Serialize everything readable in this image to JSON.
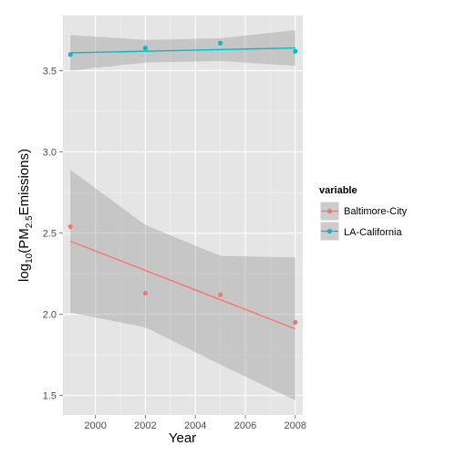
{
  "chart_data": {
    "type": "scatter",
    "title": "",
    "xlabel": "Year",
    "ylabel_parts": [
      "log",
      "10",
      "(PM",
      "2.5",
      "Emissions)"
    ],
    "xlim": [
      1998.7,
      2008.3
    ],
    "ylim": [
      1.38,
      3.84
    ],
    "x_ticks": [
      2000,
      2002,
      2004,
      2006,
      2008
    ],
    "x_tick_labels": [
      "2000",
      "2002",
      "2004",
      "2006",
      "2008"
    ],
    "y_ticks": [
      1.5,
      2.0,
      2.5,
      3.0,
      3.5
    ],
    "y_tick_labels": [
      "1.5",
      "2.0",
      "2.5",
      "3.0",
      "3.5"
    ],
    "grid": true,
    "legend": {
      "title": "variable",
      "position": "right"
    },
    "series": [
      {
        "name": "Baltimore-City",
        "color": "#F8766D",
        "x": [
          1999,
          2002,
          2005,
          2008
        ],
        "y": [
          2.54,
          2.13,
          2.12,
          1.95
        ],
        "fit": {
          "intercept_at_1999": 2.45,
          "value_at_2008": 1.91
        },
        "ci_lower": [
          2.01,
          1.92,
          1.69,
          1.47
        ],
        "ci_upper": [
          2.89,
          2.55,
          2.36,
          2.35
        ],
        "ci_x": [
          1999,
          2002,
          2005,
          2008
        ]
      },
      {
        "name": "LA-California",
        "color": "#00BFC4",
        "x": [
          1999,
          2002,
          2005,
          2008
        ],
        "y": [
          3.6,
          3.64,
          3.67,
          3.62
        ],
        "fit": {
          "intercept_at_1999": 3.61,
          "value_at_2008": 3.64
        },
        "ci_lower": [
          3.5,
          3.55,
          3.56,
          3.53
        ],
        "ci_upper": [
          3.72,
          3.69,
          3.7,
          3.75
        ],
        "ci_x": [
          1999,
          2002,
          2005,
          2008
        ]
      }
    ]
  }
}
